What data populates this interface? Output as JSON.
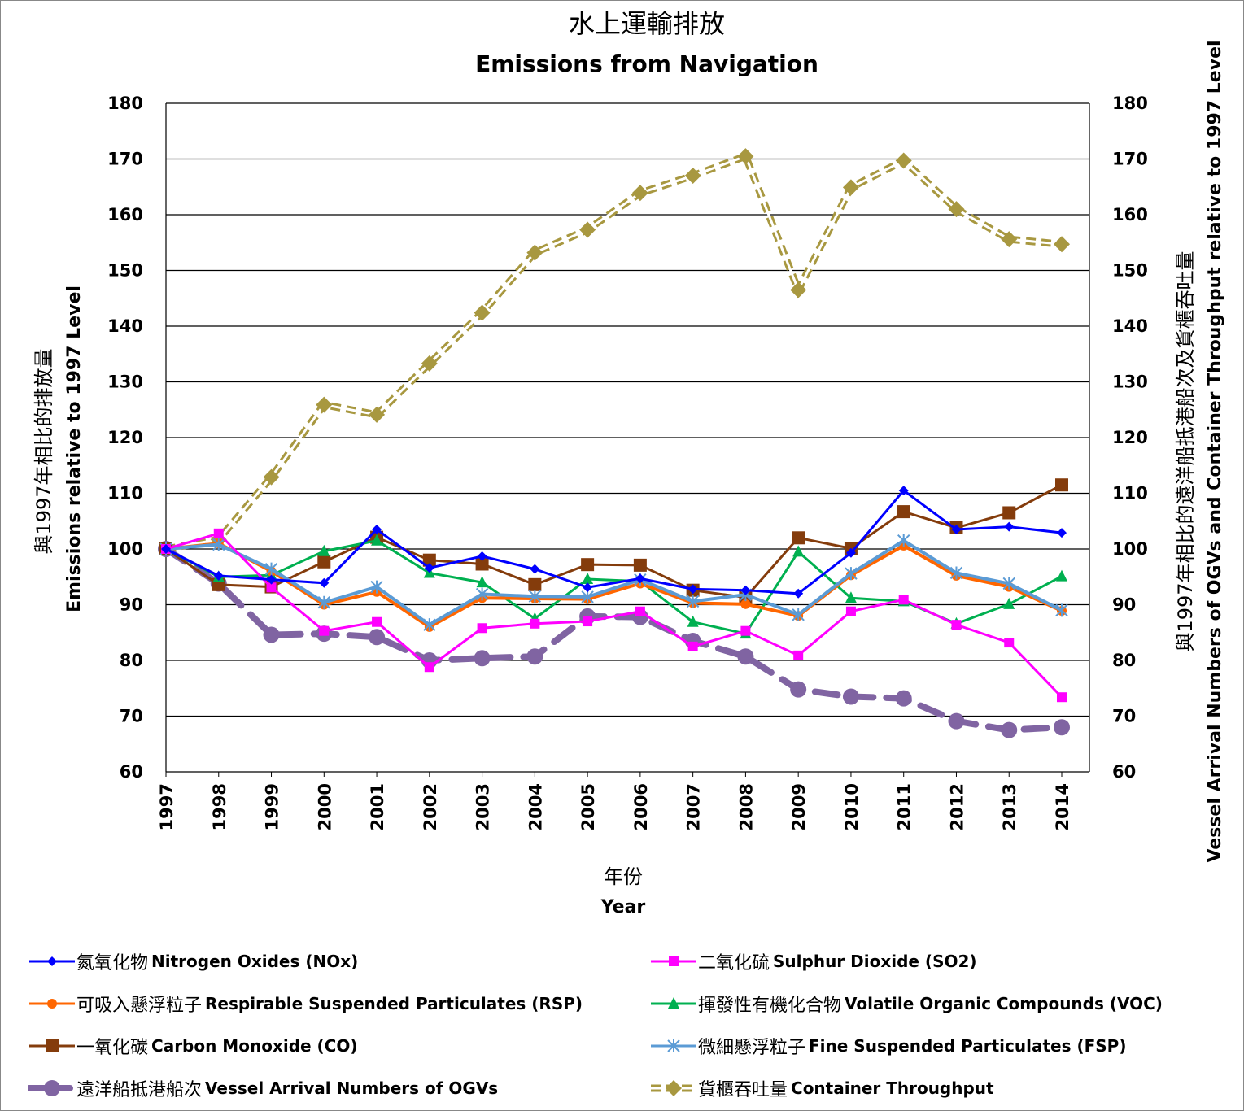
{
  "chart_data": {
    "type": "line",
    "title": "水上運輸排放",
    "subtitle": "Emissions from Navigation",
    "xlabel_zh": "年份",
    "xlabel": "Year",
    "ylabel_zh": "與1997年相比的排放量",
    "ylabel": "Emissions relative to 1997 Level",
    "y2label_zh": "與1997年相比的遠洋船抵港船次及貨櫃吞吐量",
    "y2label": "Vessel Arrival Numbers of OGVs and Container Throughput relative to 1997 Level",
    "ylim": [
      60,
      180
    ],
    "y2lim": [
      60,
      180
    ],
    "yticks": [
      "60",
      "70",
      "80",
      "90",
      "100",
      "110",
      "120",
      "130",
      "140",
      "150",
      "160",
      "170",
      "180"
    ],
    "grid": true,
    "legend_position": "bottom",
    "categories": [
      "1997",
      "1998",
      "1999",
      "2000",
      "2001",
      "2002",
      "2003",
      "2004",
      "2005",
      "2006",
      "2007",
      "2008",
      "2009",
      "2010",
      "2011",
      "2012",
      "2013",
      "2014"
    ],
    "series": [
      {
        "name_zh": "氮氧化物",
        "name": "Nitrogen Oxides (NOx)",
        "color": "#0000ff",
        "marker": "diamond",
        "style": "solid",
        "axis": "left",
        "values": [
          100,
          95.2,
          94.5,
          93.9,
          103.5,
          96.6,
          98.7,
          96.4,
          93.1,
          94.7,
          92.8,
          92.6,
          92.0,
          99.3,
          110.5,
          103.5,
          104.0,
          102.9
        ]
      },
      {
        "name_zh": "二氧化硫",
        "name": "Sulphur Dioxide (SO2)",
        "color": "#ff00ff",
        "marker": "square",
        "style": "solid",
        "axis": "left",
        "values": [
          100,
          102.8,
          93.1,
          85.3,
          86.9,
          78.8,
          85.8,
          86.6,
          87.0,
          88.8,
          82.5,
          85.3,
          80.9,
          88.8,
          90.9,
          86.4,
          83.2,
          73.4
        ]
      },
      {
        "name_zh": "可吸入懸浮粒子",
        "name": "Respirable Suspended Particulates (RSP)",
        "color": "#ff6600",
        "marker": "circle",
        "style": "solid",
        "axis": "left",
        "values": [
          100,
          101.0,
          96.0,
          90.0,
          92.3,
          86.0,
          91.2,
          91.1,
          91.0,
          93.8,
          90.3,
          90.1,
          88.0,
          95.3,
          100.6,
          95.2,
          93.2,
          88.9
        ]
      },
      {
        "name_zh": "揮發性有機化合物",
        "name": "Volatile Organic Compounds (VOC)",
        "color": "#00b050",
        "marker": "triangle",
        "style": "solid",
        "axis": "left",
        "values": [
          100,
          95.0,
          95.3,
          99.6,
          101.5,
          95.7,
          94.0,
          87.5,
          94.6,
          94.2,
          86.9,
          84.8,
          99.5,
          91.2,
          90.6,
          86.6,
          90.1,
          95.1
        ]
      },
      {
        "name_zh": "一氧化碳",
        "name": "Carbon Monoxide (CO)",
        "color": "#843c0c",
        "marker": "bigsquare",
        "style": "solid",
        "axis": "left",
        "values": [
          100,
          93.6,
          93.2,
          97.7,
          102.1,
          98.0,
          97.3,
          93.6,
          97.2,
          97.1,
          92.6,
          91.3,
          102.0,
          100.1,
          106.7,
          103.8,
          106.5,
          111.5
        ]
      },
      {
        "name_zh": "微細懸浮粒子",
        "name": "Fine Suspended Particulates (FSP)",
        "color": "#5b9bd5",
        "marker": "star",
        "style": "solid",
        "axis": "left",
        "values": [
          100,
          100.8,
          96.4,
          90.4,
          93.2,
          86.4,
          91.9,
          91.5,
          91.4,
          94.5,
          90.6,
          91.8,
          88.2,
          95.6,
          101.5,
          95.7,
          93.8,
          89.0
        ]
      },
      {
        "name_zh": "遠洋船抵港船次",
        "name": "Vessel Arrival Numbers of OGVs",
        "color": "#8064a2",
        "marker": "bigcircle",
        "style": "dash",
        "axis": "right",
        "values": [
          100,
          93.8,
          84.6,
          84.8,
          84.2,
          80.0,
          80.4,
          80.7,
          87.9,
          87.8,
          83.5,
          80.7,
          74.8,
          73.5,
          73.2,
          69.1,
          67.5,
          68.0
        ]
      },
      {
        "name_zh": "貨櫃吞吐量",
        "name": "Container Throughput",
        "color": "#a89840",
        "marker": "bigdiamond",
        "style": "double-dash",
        "axis": "right",
        "values": [
          100,
          101.7,
          112.9,
          125.9,
          124.1,
          133.3,
          142.4,
          153.2,
          157.3,
          163.9,
          167.0,
          170.5,
          146.5,
          164.9,
          169.7,
          161.0,
          155.6,
          154.7
        ]
      }
    ]
  }
}
